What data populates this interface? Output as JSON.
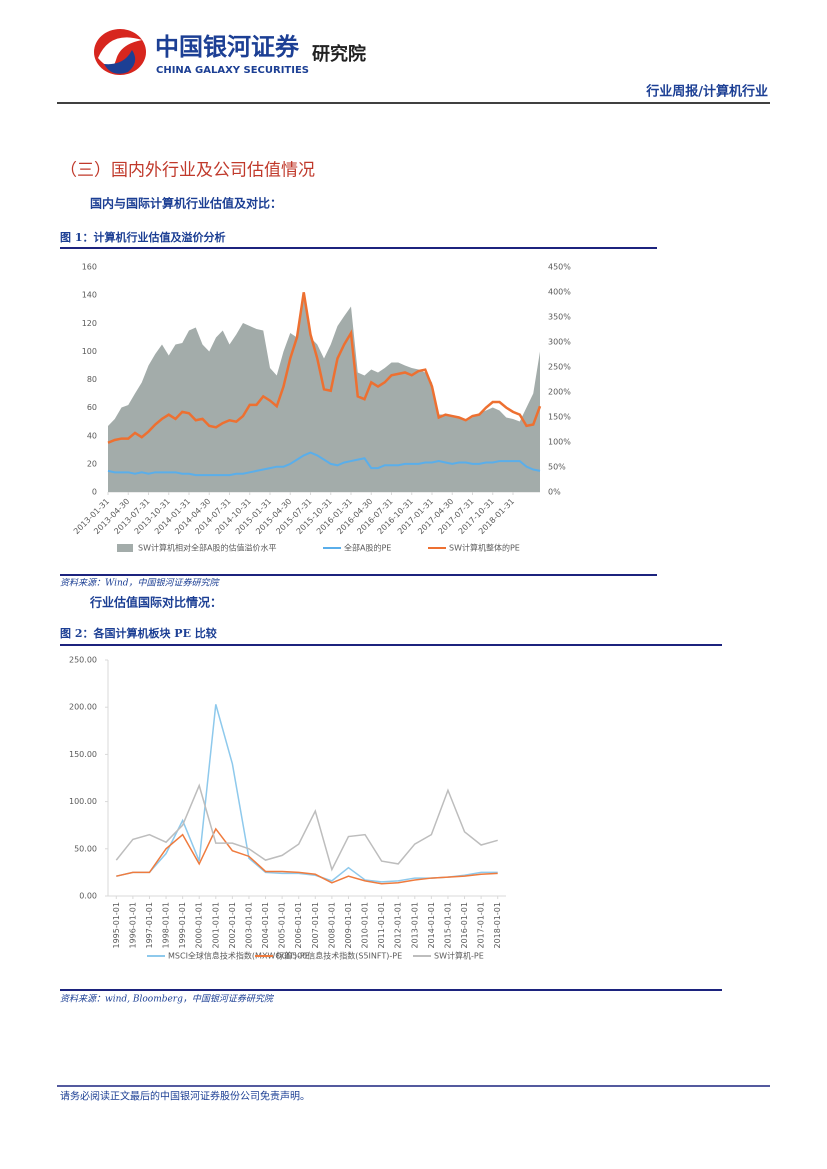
{
  "header": {
    "logo_cn": "中国银河证券",
    "logo_en": "CHINA GALAXY SECURITIES",
    "institute": "研究院",
    "report_type": "行业周报/计算机行业"
  },
  "section_title": "（三）国内外行业及公司估值情况",
  "subheading_1": "国内与国际计算机行业估值及对比：",
  "figure_1_title": "图 1：计算机行业估值及溢价分析",
  "figure_1_source": "资料来源：Wind，中国银河证券研究院",
  "subheading_2": "行业估值国际对比情况：",
  "figure_2_title": "图 2：各国计算机板块 PE 比较",
  "figure_2_source": "资料来源：wind, Bloomberg，中国银河证券研究院",
  "footer": "请务必阅读正文最后的中国银河证券股份公司免责声明。",
  "chart_data": [
    {
      "type": "line",
      "categories": [
        "2013-01-31",
        null,
        null,
        "2013-04-30",
        null,
        null,
        "2013-07-31",
        null,
        null,
        "2013-10-31",
        null,
        null,
        "2014-01-31",
        null,
        null,
        "2014-04-30",
        null,
        null,
        "2014-07-31",
        null,
        null,
        "2014-10-31",
        null,
        null,
        "2015-01-31",
        null,
        null,
        "2015-04-30",
        null,
        null,
        "2015-07-31",
        null,
        null,
        "2015-10-31",
        null,
        null,
        "2016-01-31",
        null,
        null,
        "2016-04-30",
        null,
        null,
        "2016-07-31",
        null,
        null,
        "2016-10-31",
        null,
        null,
        "2017-01-31",
        null,
        null,
        "2017-04-30",
        null,
        null,
        "2017-07-31",
        null,
        null,
        "2017-10-31",
        null,
        null,
        "2018-01-31",
        null,
        null,
        null,
        null
      ],
      "ylim": [
        0,
        160
      ],
      "yticks": [
        0,
        20,
        40,
        60,
        80,
        100,
        120,
        140,
        160
      ],
      "y2lim": [
        0,
        450
      ],
      "y2ticks": [
        {
          "value": 0,
          "label": "0%"
        },
        {
          "value": 50,
          "label": "50%"
        },
        {
          "value": 100,
          "label": "100%"
        },
        {
          "value": 150,
          "label": "150%"
        },
        {
          "value": 200,
          "label": "200%"
        },
        {
          "value": 250,
          "label": "250%"
        },
        {
          "value": 300,
          "label": "300%"
        },
        {
          "value": 350,
          "label": "350%"
        },
        {
          "value": 400,
          "label": "400%"
        },
        {
          "value": 450,
          "label": "450%"
        }
      ],
      "series": [
        {
          "name": "SW计算机相对全部A股的估值溢价水平",
          "type": "area",
          "axis": "y2",
          "color": "#a3acaa",
          "values": [
            132,
            146,
            169,
            174,
            197,
            219,
            253,
            276,
            295,
            273,
            295,
            298,
            323,
            329,
            295,
            281,
            309,
            323,
            295,
            315,
            338,
            332,
            326,
            323,
            248,
            233,
            281,
            318,
            309,
            388,
            309,
            295,
            267,
            295,
            332,
            352,
            371,
            239,
            233,
            245,
            239,
            248,
            259,
            259,
            253,
            248,
            245,
            239,
            219,
            155,
            155,
            152,
            149,
            141,
            149,
            158,
            163,
            169,
            163,
            149,
            146,
            141,
            169,
            197,
            281
          ]
        },
        {
          "name": "全部A股的PE",
          "type": "line",
          "color": "#5aaeea",
          "values": [
            15,
            14,
            14,
            14,
            13,
            14,
            13,
            14,
            14,
            14,
            14,
            13,
            13,
            12,
            12,
            12,
            12,
            12,
            12,
            13,
            13,
            14,
            15,
            16,
            17,
            18,
            18,
            20,
            23,
            26,
            28,
            26,
            23,
            20,
            19,
            21,
            22,
            23,
            24,
            17,
            17,
            19,
            19,
            19,
            20,
            20,
            20,
            21,
            21,
            22,
            21,
            20,
            21,
            21,
            20,
            20,
            21,
            21,
            22,
            22,
            22,
            22,
            18,
            16,
            15
          ]
        },
        {
          "name": "SW计算机整体的PE",
          "type": "line",
          "color": "#ed7031",
          "values": [
            35,
            37,
            38,
            38,
            42,
            39,
            43,
            48,
            52,
            55,
            52,
            57,
            56,
            51,
            52,
            47,
            46,
            49,
            51,
            50,
            54,
            62,
            62,
            68,
            65,
            61,
            75,
            95,
            110,
            142,
            112,
            95,
            73,
            72,
            95,
            105,
            113,
            68,
            66,
            78,
            75,
            78,
            83,
            84,
            85,
            83,
            86,
            87,
            75,
            53,
            55,
            54,
            53,
            51,
            54,
            55,
            60,
            64,
            64,
            60,
            57,
            55,
            47,
            48,
            61
          ]
        }
      ]
    },
    {
      "type": "line",
      "categories": [
        "1995-01-01",
        "1996-01-01",
        "1997-01-01",
        "1998-01-01",
        "1999-01-01",
        "2000-01-01",
        "2001-01-01",
        "2002-01-01",
        "2003-01-01",
        "2004-01-01",
        "2005-01-01",
        "2006-01-01",
        "2007-01-01",
        "2008-01-01",
        "2009-01-01",
        "2010-01-01",
        "2011-01-01",
        "2012-01-01",
        "2013-01-01",
        "2014-01-01",
        "2015-01-01",
        "2016-01-01",
        "2017-01-01",
        "2018-01-01"
      ],
      "ylim": [
        0,
        250
      ],
      "yticks": [
        {
          "value": 0,
          "label": "0.00"
        },
        {
          "value": 50,
          "label": "50.00"
        },
        {
          "value": 100,
          "label": "100.00"
        },
        {
          "value": 150,
          "label": "150.00"
        },
        {
          "value": 200,
          "label": "200.00"
        },
        {
          "value": 250,
          "label": "250.00"
        }
      ],
      "series": [
        {
          "name": "MSCI全球信息技术指数(MXWO0IT)-PE",
          "type": "line",
          "color": "#8ec9ec",
          "values": [
            21,
            25,
            25,
            45,
            80,
            37,
            203,
            140,
            40,
            25,
            24,
            24,
            22,
            16,
            30,
            17,
            15,
            16,
            19,
            19,
            20,
            22,
            25,
            25
          ]
        },
        {
          "name": "标普500信息技术指数(S5INFT)-PE",
          "type": "line",
          "color": "#ef7b3e",
          "values": [
            21,
            25,
            25,
            50,
            65,
            34,
            71,
            48,
            42,
            26,
            26,
            25,
            23,
            14,
            21,
            16,
            13,
            14,
            17,
            19,
            20,
            21,
            23,
            24
          ]
        },
        {
          "name": "SW计算机-PE",
          "type": "line",
          "color": "#bdbdbd",
          "values": [
            38,
            60,
            65,
            57,
            75,
            117,
            56,
            56,
            50,
            38,
            43,
            55,
            90,
            28,
            63,
            65,
            37,
            34,
            55,
            65,
            112,
            68,
            54,
            59
          ]
        }
      ]
    }
  ]
}
